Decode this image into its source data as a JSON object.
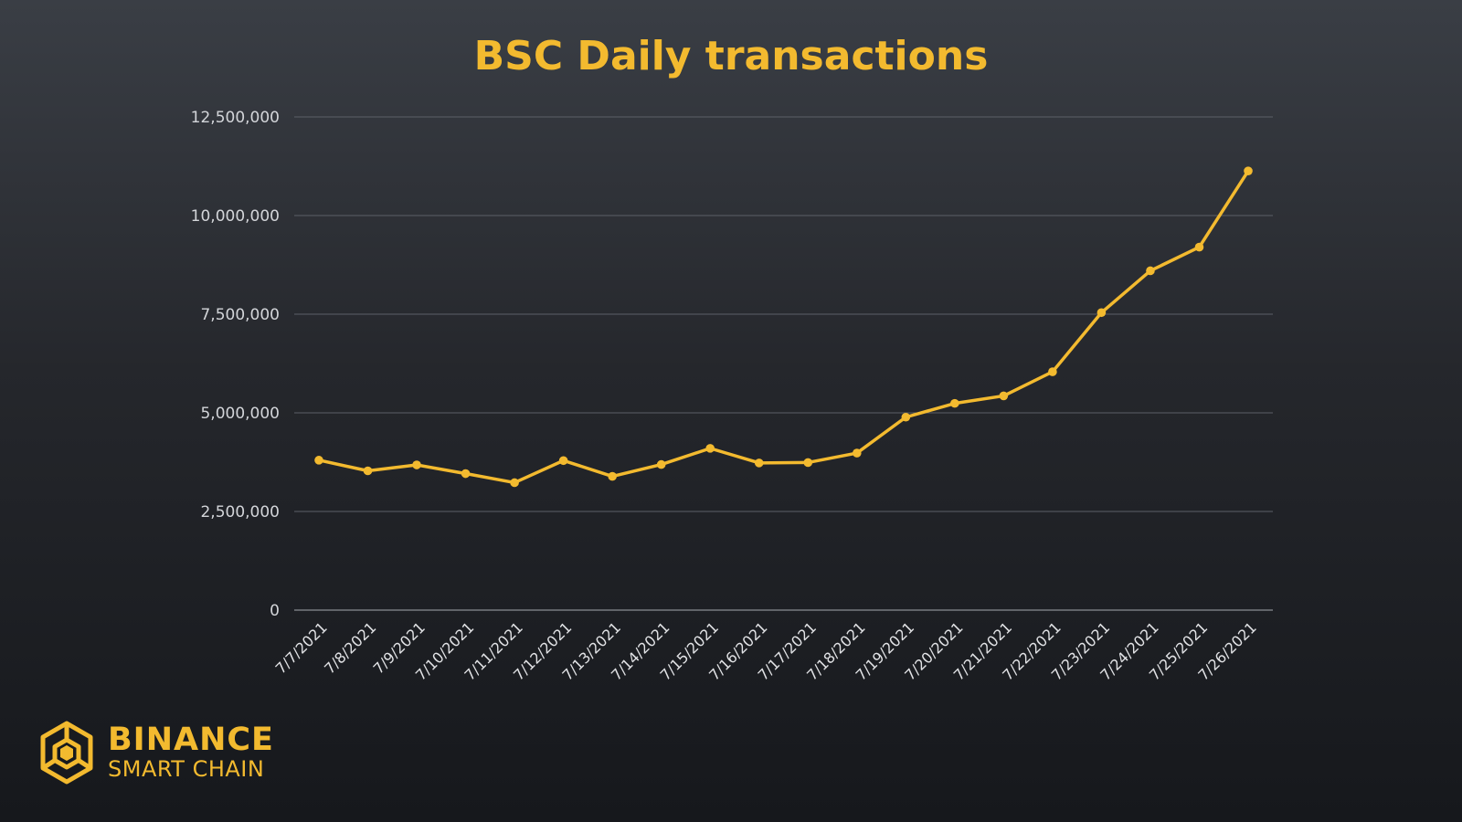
{
  "chart_data": {
    "type": "line",
    "title": "BSC Daily transactions",
    "xlabel": "",
    "ylabel": "",
    "categories": [
      "7/7/2021",
      "7/8/2021",
      "7/9/2021",
      "7/10/2021",
      "7/11/2021",
      "7/12/2021",
      "7/13/2021",
      "7/14/2021",
      "7/15/2021",
      "7/16/2021",
      "7/17/2021",
      "7/18/2021",
      "7/19/2021",
      "7/20/2021",
      "7/21/2021",
      "7/22/2021",
      "7/23/2021",
      "7/24/2021",
      "7/25/2021",
      "7/26/2021"
    ],
    "series": [
      {
        "values": [
          3800000,
          3530000,
          3680000,
          3460000,
          3230000,
          3790000,
          3390000,
          3690000,
          4100000,
          3730000,
          3740000,
          3980000,
          4890000,
          5240000,
          5430000,
          6040000,
          7540000,
          8600000,
          9200000,
          11130000
        ]
      }
    ],
    "ylim": [
      0,
      12500000
    ],
    "yticks": [
      "0",
      "2,500,000",
      "5,000,000",
      "7,500,000",
      "10,000,000",
      "12,500,000"
    ],
    "ytick_values": [
      0,
      2500000,
      5000000,
      7500000,
      10000000,
      12500000
    ],
    "grid": true,
    "legend": "none",
    "line_color": "#f3ba2f"
  },
  "brand": {
    "name": "BINANCE",
    "sub": "SMART CHAIN",
    "logo_icon": "binance-cube-icon",
    "color": "#f3ba2f"
  }
}
